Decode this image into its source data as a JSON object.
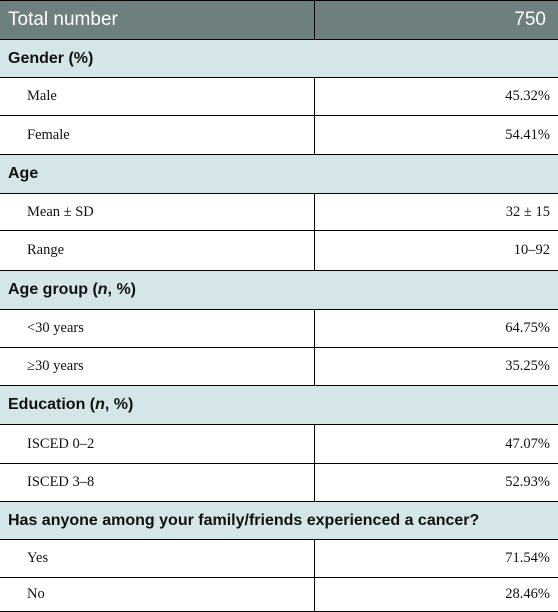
{
  "header": {
    "label": "Total number",
    "value": "750"
  },
  "sections": [
    {
      "title_parts": [
        "Gender (%)"
      ],
      "rows": [
        {
          "label": "Male",
          "value": "45.32%"
        },
        {
          "label": "Female",
          "value": "54.41%"
        }
      ]
    },
    {
      "title_parts": [
        "Age"
      ],
      "rows": [
        {
          "label": "Mean ± SD",
          "value": "32 ± 15"
        },
        {
          "label": "Range",
          "value": "10–92"
        }
      ]
    },
    {
      "title_parts": [
        "Age group (",
        "n",
        ", %)"
      ],
      "rows": [
        {
          "label": "<30 years",
          "value": "64.75%"
        },
        {
          "label": "≥30 years",
          "value": "35.25%"
        }
      ]
    },
    {
      "title_parts": [
        "Education (",
        "n",
        ", %)"
      ],
      "rows": [
        {
          "label": "ISCED 0–2",
          "value": "47.07%"
        },
        {
          "label": "ISCED 3–8",
          "value": "52.93%"
        }
      ]
    },
    {
      "title_parts": [
        "Has anyone among your family/friends experienced a cancer?"
      ],
      "rows": [
        {
          "label": "Yes",
          "value": "71.54%"
        },
        {
          "label": "No",
          "value": "28.46%"
        }
      ]
    }
  ]
}
